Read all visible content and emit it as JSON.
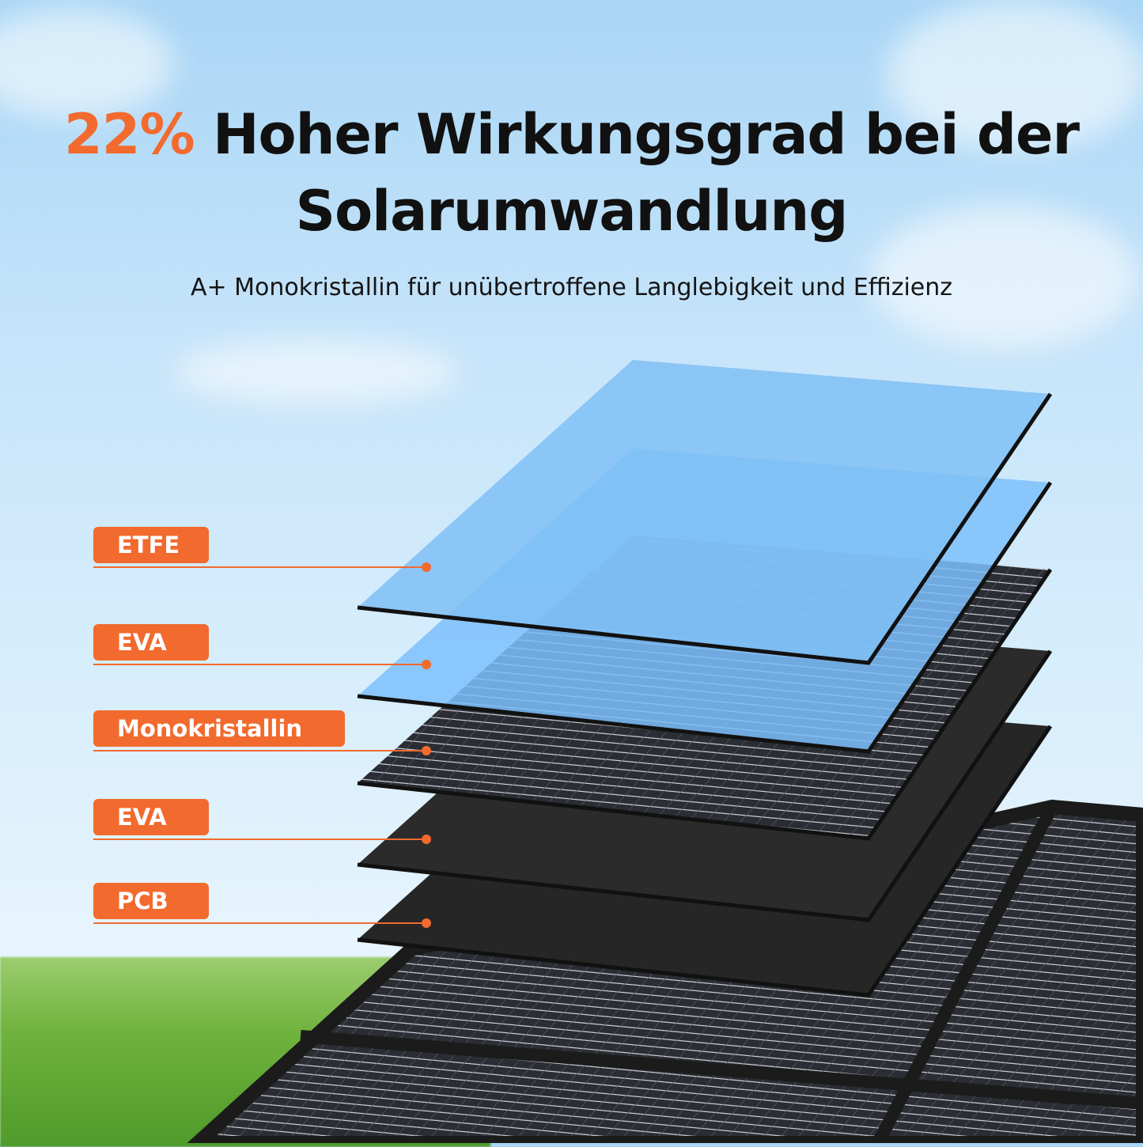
{
  "headline": {
    "accent": "22%",
    "line1": "Hoher Wirkungsgrad bei der",
    "line2": "Solarumwandlung"
  },
  "subtitle": "A+ Monokristallin für unübertroffene Langlebigkeit und Effizienz",
  "colors": {
    "accent": "#f26a2e",
    "text": "#111111"
  },
  "layers": [
    {
      "label": "ETFE",
      "color": "#7fbff5"
    },
    {
      "label": "EVA",
      "color": "#7cc0fb"
    },
    {
      "label": "Monokristallin",
      "color": "#2a2d33"
    },
    {
      "label": "EVA",
      "color": "#2b2b2b"
    },
    {
      "label": "PCB",
      "color": "#262626"
    }
  ]
}
